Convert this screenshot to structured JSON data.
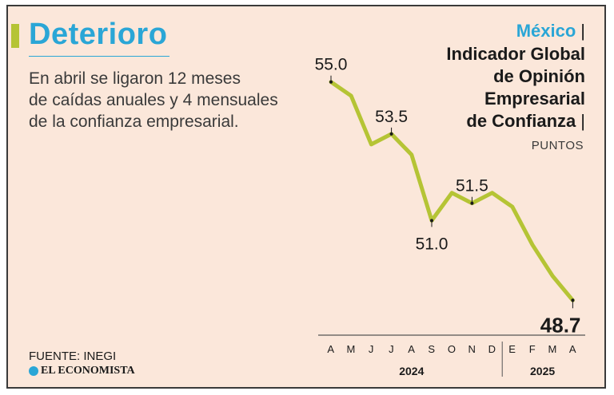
{
  "header": {
    "title": "Deterioro",
    "subtitle_lines": [
      "En abril se ligaron 12 meses",
      "de caídas anuales y 4 mensuales",
      "de la confianza empresarial."
    ]
  },
  "chart_header": {
    "country": "México",
    "indicator_lines": [
      "Indicador Global",
      "de Opinión",
      "Empresarial",
      "de Confianza"
    ],
    "unit": "PUNTOS"
  },
  "footer": {
    "source": "FUENTE: INEGI",
    "brand": "EL ECONOMISTA"
  },
  "colors": {
    "background": "#fbe7da",
    "line": "#b5c435",
    "title": "#2aa6d6",
    "text": "#1a1a1a"
  },
  "chart_data": {
    "type": "line",
    "title": "Indicador Global de Opinión Empresarial de Confianza",
    "ylabel": "PUNTOS",
    "x": [
      "A",
      "M",
      "J",
      "J",
      "A",
      "S",
      "O",
      "N",
      "D",
      "E",
      "F",
      "M",
      "A"
    ],
    "years": [
      {
        "label": "2024",
        "start": 0,
        "end": 8
      },
      {
        "label": "2025",
        "start": 9,
        "end": 12
      }
    ],
    "series": [
      {
        "name": "",
        "values": [
          55.0,
          54.6,
          53.2,
          53.5,
          52.9,
          51.0,
          51.8,
          51.5,
          51.8,
          51.4,
          50.3,
          49.4,
          48.7
        ]
      }
    ],
    "labels": [
      {
        "index": 0,
        "text": "55.0"
      },
      {
        "index": 3,
        "text": "53.5"
      },
      {
        "index": 5,
        "text": "51.0"
      },
      {
        "index": 7,
        "text": "51.5"
      },
      {
        "index": 12,
        "text": "48.7"
      }
    ],
    "ylim": [
      48.2,
      55.8
    ],
    "grid": false
  }
}
